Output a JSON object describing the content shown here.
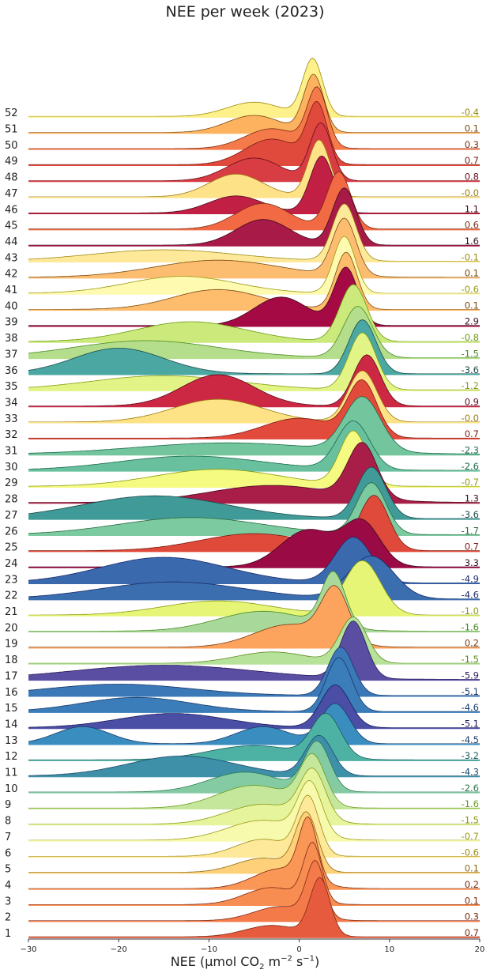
{
  "chart_data": {
    "type": "ridgeline",
    "title": "NEE per week (2023)",
    "xlabel": {
      "pre": "NEE (μmol CO",
      "sub": "2",
      "mid": " m",
      "sup1": "−2",
      "mid2": " s",
      "sup2": "−1",
      "post": ")"
    },
    "xlim": [
      -30,
      20
    ],
    "xticks": [
      "−30",
      "−20",
      "−10",
      "0",
      "10",
      "20"
    ],
    "xtick_values": [
      -30,
      -20,
      -10,
      0,
      10,
      20
    ],
    "weeks": [
      {
        "week": "1",
        "mean": "0.7",
        "color": "#e65a3e",
        "text": "#7a2a10",
        "peaks": [
          [
            2.3,
            1.0,
            1.1
          ],
          [
            -3,
            0.2,
            3
          ]
        ]
      },
      {
        "week": "2",
        "mean": "0.3",
        "color": "#f47a4a",
        "text": "#7a2a10",
        "peaks": [
          [
            1.8,
            0.95,
            1.0
          ],
          [
            -2,
            0.25,
            3
          ]
        ]
      },
      {
        "week": "3",
        "mean": "0.1",
        "color": "#f88d52",
        "text": "#7a2a10",
        "peaks": [
          [
            1.5,
            1.0,
            1.0
          ],
          [
            -3,
            0.3,
            3
          ]
        ]
      },
      {
        "week": "4",
        "mean": "0.2",
        "color": "#fa9656",
        "text": "#7a2a10",
        "peaks": [
          [
            1.0,
            1.05,
            1.0
          ],
          [
            -2,
            0.35,
            3
          ]
        ]
      },
      {
        "week": "5",
        "mean": "0.1",
        "color": "#fdd079",
        "text": "#8a6a10",
        "peaks": [
          [
            0.8,
            1.0,
            1.2
          ],
          [
            -4,
            0.25,
            3
          ]
        ]
      },
      {
        "week": "6",
        "mean": "-0.6",
        "color": "#fee99a",
        "text": "#9a8a10",
        "peaks": [
          [
            1.0,
            1.0,
            1.2
          ],
          [
            -4,
            0.3,
            3
          ]
        ]
      },
      {
        "week": "7",
        "mean": "-0.7",
        "color": "#f7faac",
        "text": "#9a9a10",
        "peaks": [
          [
            1.2,
            0.9,
            1.3
          ],
          [
            -4,
            0.35,
            4
          ]
        ]
      },
      {
        "week": "8",
        "mean": "-1.5",
        "color": "#e6f59c",
        "text": "#8a9a10",
        "peaks": [
          [
            1.5,
            0.85,
            1.4
          ],
          [
            -4,
            0.35,
            4
          ]
        ]
      },
      {
        "week": "9",
        "mean": "-1.6",
        "color": "#c5e79c",
        "text": "#6a9a20",
        "peaks": [
          [
            1.5,
            0.85,
            1.4
          ],
          [
            -5,
            0.4,
            4
          ]
        ]
      },
      {
        "week": "10",
        "mean": "-2.6",
        "color": "#84cba4",
        "text": "#2a7a50",
        "peaks": [
          [
            2.0,
            0.85,
            1.4
          ],
          [
            -6,
            0.35,
            4
          ]
        ]
      },
      {
        "week": "11",
        "mean": "-4.3",
        "color": "#3e8fa8",
        "text": "#1a4a6a",
        "peaks": [
          [
            2.2,
            0.7,
            1.5
          ],
          [
            -13,
            0.35,
            6
          ]
        ]
      },
      {
        "week": "12",
        "mean": "-3.2",
        "color": "#4db2a4",
        "text": "#1a5a5a",
        "peaks": [
          [
            3.0,
            0.75,
            1.6
          ],
          [
            -5,
            0.25,
            5
          ]
        ]
      },
      {
        "week": "13",
        "mean": "-4.5",
        "color": "#3a8dbf",
        "text": "#1a3a6a",
        "peaks": [
          [
            4.0,
            0.7,
            1.6
          ],
          [
            -4,
            0.3,
            3
          ],
          [
            -24,
            0.3,
            3
          ]
        ]
      },
      {
        "week": "14",
        "mean": "-5.1",
        "color": "#4a4fa5",
        "text": "#1a1a5a",
        "peaks": [
          [
            4.0,
            0.75,
            1.6
          ],
          [
            -14,
            0.25,
            6
          ]
        ]
      },
      {
        "week": "15",
        "mean": "-4.6",
        "color": "#3a7db8",
        "text": "#1a3a6a",
        "peaks": [
          [
            4.4,
            0.95,
            1.4
          ],
          [
            -18,
            0.25,
            6
          ]
        ]
      },
      {
        "week": "16",
        "mean": "-5.1",
        "color": "#3a78b8",
        "text": "#1a3a6a",
        "peaks": [
          [
            4.6,
            0.85,
            1.4
          ],
          [
            -20,
            0.2,
            8
          ]
        ]
      },
      {
        "week": "17",
        "mean": "-5.9",
        "color": "#5a4ea3",
        "text": "#2a1a5a",
        "peaks": [
          [
            6.0,
            1.0,
            1.4
          ],
          [
            -15,
            0.25,
            10
          ]
        ]
      },
      {
        "week": "18",
        "mean": "-1.5",
        "color": "#b7e29a",
        "text": "#5a8a20",
        "peaks": [
          [
            6.0,
            0.8,
            1.5
          ],
          [
            -3,
            0.2,
            4
          ]
        ]
      },
      {
        "week": "19",
        "mean": "0.2",
        "color": "#fca35e",
        "text": "#7a3a10",
        "peaks": [
          [
            4.0,
            0.9,
            1.5
          ],
          [
            -1,
            0.4,
            4
          ]
        ]
      },
      {
        "week": "20",
        "mean": "-1.6",
        "color": "#a9d99a",
        "text": "#4a8a20",
        "peaks": [
          [
            3.8,
            0.95,
            1.3
          ],
          [
            -4,
            0.35,
            5
          ]
        ]
      },
      {
        "week": "21",
        "mean": "-1.0",
        "color": "#e6f575",
        "text": "#8a9a10",
        "peaks": [
          [
            7.0,
            0.95,
            2.0
          ],
          [
            -9,
            0.25,
            6
          ]
        ]
      },
      {
        "week": "22",
        "mean": "-4.6",
        "color": "#3a6eae",
        "text": "#1a2a6a",
        "peaks": [
          [
            8.0,
            0.75,
            2.5
          ],
          [
            -14,
            0.3,
            8
          ]
        ]
      },
      {
        "week": "23",
        "mean": "-4.9",
        "color": "#3a6aad",
        "text": "#1a2a6a",
        "peaks": [
          [
            6.0,
            0.8,
            2.0
          ],
          [
            -15,
            0.45,
            7
          ]
        ]
      },
      {
        "week": "24",
        "mean": "3.3",
        "color": "#9a0a45",
        "text": "#3a0a1a",
        "peaks": [
          [
            7.0,
            0.75,
            2.0
          ],
          [
            1,
            0.65,
            3
          ]
        ]
      },
      {
        "week": "25",
        "mean": "0.7",
        "color": "#e04a3a",
        "text": "#7a1a10",
        "peaks": [
          [
            8.3,
            0.95,
            1.6
          ],
          [
            -5,
            0.3,
            6
          ]
        ]
      },
      {
        "week": "26",
        "mean": "-1.7",
        "color": "#7ccaa0",
        "text": "#2a6a40",
        "peaks": [
          [
            8.0,
            0.9,
            1.6
          ],
          [
            -12,
            0.3,
            8
          ]
        ]
      },
      {
        "week": "27",
        "mean": "-3.6",
        "color": "#3f9a98",
        "text": "#1a4a4a",
        "peaks": [
          [
            8.0,
            0.9,
            1.6
          ],
          [
            -16,
            0.4,
            8
          ]
        ]
      },
      {
        "week": "28",
        "mean": "1.3",
        "color": "#a81e48",
        "text": "#4a0a1a",
        "peaks": [
          [
            7.0,
            0.95,
            1.6
          ],
          [
            -3,
            0.3,
            7
          ]
        ]
      },
      {
        "week": "29",
        "mean": "-0.7",
        "color": "#f5fa80",
        "text": "#8a9a10",
        "peaks": [
          [
            6.0,
            0.95,
            1.5
          ],
          [
            -9,
            0.3,
            7
          ]
        ]
      },
      {
        "week": "30",
        "mean": "-2.6",
        "color": "#68c09e",
        "text": "#1a6a4a",
        "peaks": [
          [
            6.0,
            0.85,
            1.8
          ],
          [
            -12,
            0.25,
            8
          ]
        ]
      },
      {
        "week": "31",
        "mean": "-2.3",
        "color": "#73c59d",
        "text": "#1a6a4a",
        "peaks": [
          [
            7.0,
            0.95,
            2.0
          ],
          [
            -8,
            0.2,
            10
          ]
        ]
      },
      {
        "week": "32",
        "mean": "0.7",
        "color": "#e24a3c",
        "text": "#7a1a10",
        "peaks": [
          [
            7.0,
            0.95,
            1.6
          ],
          [
            0,
            0.35,
            4
          ]
        ]
      },
      {
        "week": "33",
        "mean": "-0.0",
        "color": "#fde385",
        "text": "#9a7a10",
        "peaks": [
          [
            7.0,
            0.9,
            1.6
          ],
          [
            -9,
            0.4,
            5
          ]
        ]
      },
      {
        "week": "34",
        "mean": "0.9",
        "color": "#cc2844",
        "text": "#5a0a1a",
        "peaks": [
          [
            7.5,
            0.9,
            1.5
          ],
          [
            -9,
            0.55,
            4
          ]
        ]
      },
      {
        "week": "35",
        "mean": "-1.2",
        "color": "#e1f485",
        "text": "#8a9a10",
        "peaks": [
          [
            7.0,
            1.0,
            1.5
          ],
          [
            -15,
            0.25,
            8
          ]
        ]
      },
      {
        "week": "36",
        "mean": "-3.6",
        "color": "#4aa7a2",
        "text": "#1a4a4a",
        "peaks": [
          [
            7.0,
            0.95,
            1.5
          ],
          [
            -20,
            0.45,
            5
          ]
        ]
      },
      {
        "week": "37",
        "mean": "-1.5",
        "color": "#b4de8c",
        "text": "#4a8a20",
        "peaks": [
          [
            6.5,
            0.9,
            1.6
          ],
          [
            -17,
            0.3,
            8
          ]
        ]
      },
      {
        "week": "38",
        "mean": "-0.8",
        "color": "#ccea7c",
        "text": "#6a9a10",
        "peaks": [
          [
            6.0,
            1.0,
            1.5
          ],
          [
            -12,
            0.35,
            6
          ]
        ]
      },
      {
        "week": "39",
        "mean": "2.9",
        "color": "#a50a44",
        "text": "#3a0a1a",
        "peaks": [
          [
            5.2,
            1.0,
            1.3
          ],
          [
            -2,
            0.5,
            3
          ]
        ]
      },
      {
        "week": "40",
        "mean": "0.1",
        "color": "#fdbd6c",
        "text": "#7a4a10",
        "peaks": [
          [
            5.2,
            1.0,
            1.2
          ],
          [
            -9,
            0.35,
            5
          ]
        ]
      },
      {
        "week": "41",
        "mean": "-0.6",
        "color": "#fefab0",
        "text": "#9a9a10",
        "peaks": [
          [
            5.0,
            1.0,
            1.2
          ],
          [
            -13,
            0.3,
            6
          ]
        ]
      },
      {
        "week": "42",
        "mean": "0.1",
        "color": "#fdbd70",
        "text": "#7a4a10",
        "peaks": [
          [
            5.0,
            1.0,
            1.3
          ],
          [
            -9,
            0.3,
            7
          ]
        ]
      },
      {
        "week": "43",
        "mean": "-0.1",
        "color": "#fee99a",
        "text": "#9a8a10",
        "peaks": [
          [
            5.0,
            1.0,
            1.3
          ],
          [
            -15,
            0.2,
            8
          ]
        ]
      },
      {
        "week": "44",
        "mean": "1.6",
        "color": "#a81a48",
        "text": "#3a0a1a",
        "peaks": [
          [
            5.0,
            1.0,
            1.3
          ],
          [
            -4,
            0.45,
            3
          ]
        ]
      },
      {
        "week": "45",
        "mean": "0.6",
        "color": "#f26a44",
        "text": "#7a2a10",
        "peaks": [
          [
            4.4,
            1.0,
            1.3
          ],
          [
            -4,
            0.45,
            3
          ]
        ]
      },
      {
        "week": "46",
        "mean": "1.1",
        "color": "#c21f44",
        "text": "#4a0a1a",
        "peaks": [
          [
            2.5,
            1.0,
            1.3
          ],
          [
            -7,
            0.3,
            3
          ]
        ]
      },
      {
        "week": "47",
        "mean": "-0.0",
        "color": "#fee287",
        "text": "#9a7a10",
        "peaks": [
          [
            2.2,
            1.0,
            1.2
          ],
          [
            -7,
            0.4,
            3
          ]
        ]
      },
      {
        "week": "48",
        "mean": "0.8",
        "color": "#d83d44",
        "text": "#6a0a1a",
        "peaks": [
          [
            2.4,
            1.0,
            1.2
          ],
          [
            -5,
            0.4,
            3
          ]
        ]
      },
      {
        "week": "49",
        "mean": "0.7",
        "color": "#df4a3c",
        "text": "#7a1a10",
        "peaks": [
          [
            2.0,
            1.0,
            1.1
          ],
          [
            -3,
            0.45,
            3
          ]
        ]
      },
      {
        "week": "50",
        "mean": "0.3",
        "color": "#f47a4a",
        "text": "#7a2a10",
        "peaks": [
          [
            2.0,
            1.0,
            1.1
          ],
          [
            -3,
            0.35,
            3
          ]
        ]
      },
      {
        "week": "51",
        "mean": "0.1",
        "color": "#fdb260",
        "text": "#7a4a10",
        "peaks": [
          [
            1.6,
            1.0,
            1.1
          ],
          [
            -5,
            0.3,
            3
          ]
        ]
      },
      {
        "week": "52",
        "mean": "-0.4",
        "color": "#fef08a",
        "text": "#9a8a10",
        "peaks": [
          [
            1.5,
            1.0,
            1.1
          ],
          [
            -5,
            0.25,
            3
          ]
        ]
      }
    ]
  }
}
